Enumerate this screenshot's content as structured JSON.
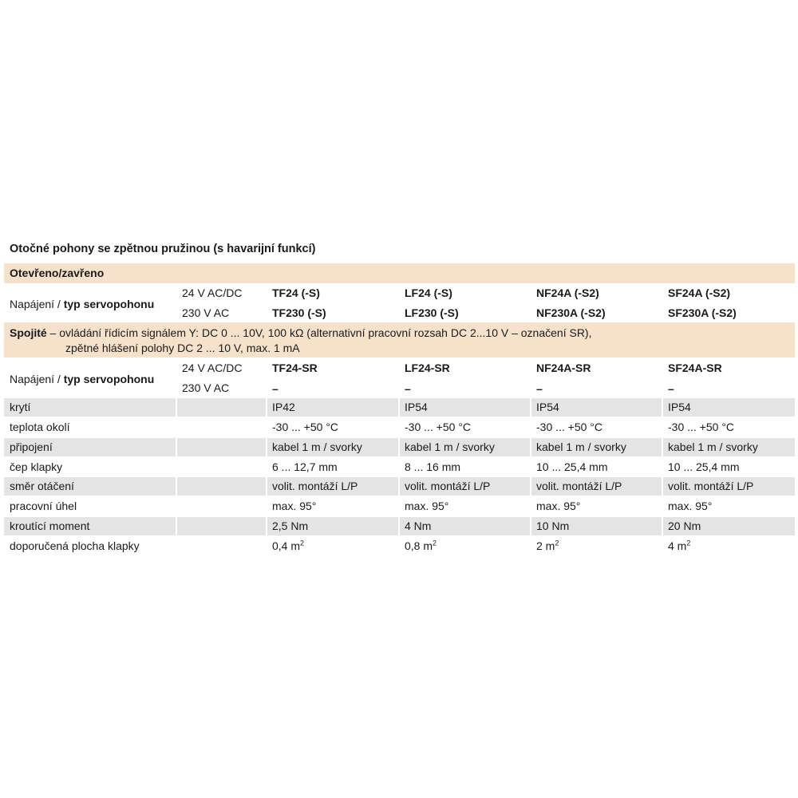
{
  "title": "Otočné pohony se zpětnou pružinou (s havarijní funkcí)",
  "section1": {
    "label": "Otevřeno/zavřeno",
    "supply_label_prefix": "Napájení / ",
    "supply_label_bold": "typ servopohonu",
    "voltage_24": "24 V AC/DC",
    "voltage_230": "230 V AC",
    "models_24": [
      "TF24 (-S)",
      "LF24 (-S)",
      "NF24A (-S2)",
      "SF24A (-S2)"
    ],
    "models_230": [
      "TF230 (-S)",
      "LF230 (-S)",
      "NF230A (-S2)",
      "SF230A (-S2)"
    ]
  },
  "section2": {
    "label": "Spojité",
    "description_line1": " – ovládání řídicím signálem Y: DC 0 ... 10V, 100 kΩ (alternativní pracovní rozsah DC 2...10 V – označení SR),",
    "description_line2": "zpětné hlášení polohy DC 2 ... 10 V, max. 1 mA",
    "supply_label_prefix": "Napájení / ",
    "supply_label_bold": "typ servopohonu",
    "voltage_24": "24 V AC/DC",
    "voltage_230": "230 V AC",
    "models_24": [
      "TF24-SR",
      "LF24-SR",
      "NF24A-SR",
      "SF24A-SR"
    ],
    "models_230": [
      "–",
      "–",
      "–",
      "–"
    ]
  },
  "specs": {
    "rows": [
      {
        "label": "krytí",
        "values": [
          "IP42",
          "IP54",
          "IP54",
          "IP54"
        ]
      },
      {
        "label": "teplota okolí",
        "values": [
          "-30 ... +50 °C",
          "-30 ... +50 °C",
          "-30 ... +50 °C",
          "-30 ... +50 °C"
        ]
      },
      {
        "label": "připojení",
        "values": [
          "kabel 1 m / svorky",
          "kabel 1 m / svorky",
          "kabel 1 m / svorky",
          "kabel 1 m / svorky"
        ]
      },
      {
        "label": "čep klapky",
        "values": [
          "6 ... 12,7 mm",
          "8 ... 16 mm",
          "10 ... 25,4 mm",
          "10 ... 25,4 mm"
        ]
      },
      {
        "label": "směr otáčení",
        "values": [
          "volit. montáží L/P",
          "volit. montáží L/P",
          "volit. montáží L/P",
          "volit. montáží L/P"
        ]
      },
      {
        "label": "pracovní úhel",
        "values": [
          "max. 95°",
          "max. 95°",
          "max. 95°",
          "max. 95°"
        ]
      },
      {
        "label": "kroutící moment",
        "values": [
          "2,5 Nm",
          "4 Nm",
          "10 Nm",
          "20 Nm"
        ]
      }
    ],
    "area_row": {
      "label": "doporučená plocha klapky",
      "values": [
        "0,4 m",
        "0,8 m",
        "2 m",
        "4 m"
      ],
      "superscript": "2"
    }
  },
  "colors": {
    "section_band": "#f6e2cb",
    "row_shade": "#e4e4e4"
  }
}
